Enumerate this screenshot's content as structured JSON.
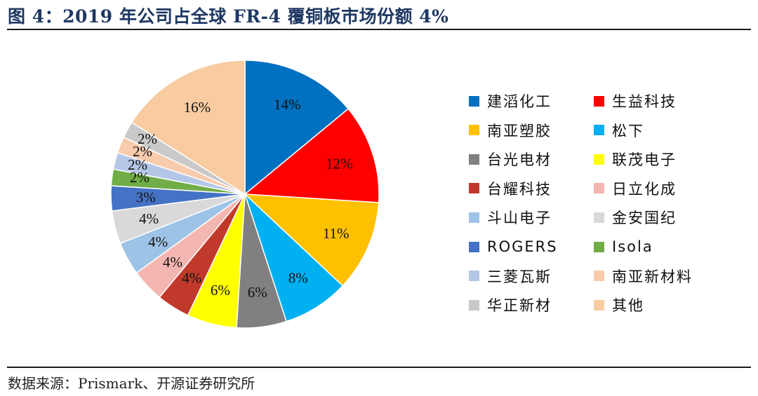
{
  "figure": {
    "title": "图 4：2019 年公司占全球 FR-4 覆铜板市场份额 4%",
    "source": "数据来源：Prismark、开源证券研究所"
  },
  "chart_data": {
    "type": "pie",
    "title": "",
    "unit": "%",
    "start": "12 o'clock",
    "direction": "clockwise",
    "legend_position": "right",
    "slices": [
      {
        "name": "建滔化工",
        "value": 14,
        "label": "14%",
        "color": "#0070c0"
      },
      {
        "name": "生益科技",
        "value": 12,
        "label": "12%",
        "color": "#ff0000"
      },
      {
        "name": "南亚塑胶",
        "value": 11,
        "label": "11%",
        "color": "#ffc000"
      },
      {
        "name": "松下",
        "value": 8,
        "label": "8%",
        "color": "#00b0f0"
      },
      {
        "name": "台光电材",
        "value": 6,
        "label": "6%",
        "color": "#808080"
      },
      {
        "name": "联茂电子",
        "value": 6,
        "label": "6%",
        "color": "#ffff00"
      },
      {
        "name": "台耀科技",
        "value": 4,
        "label": "4%",
        "color": "#c0392b"
      },
      {
        "name": "日立化成",
        "value": 4,
        "label": "4%",
        "color": "#f4b6b0"
      },
      {
        "name": "斗山电子",
        "value": 4,
        "label": "4%",
        "color": "#9dc3e6"
      },
      {
        "name": "金安国纪",
        "value": 4,
        "label": "4%",
        "color": "#d9d9d9"
      },
      {
        "name": "ROGERS",
        "value": 3,
        "label": "3%",
        "color": "#4472c4"
      },
      {
        "name": "Isola",
        "value": 2,
        "label": "2%",
        "color": "#70ad47"
      },
      {
        "name": "三菱瓦斯",
        "value": 2,
        "label": "2%",
        "color": "#b4c7e7"
      },
      {
        "name": "南亚新材料",
        "value": 2,
        "label": "2%",
        "color": "#f8cbad"
      },
      {
        "name": "华正新材",
        "value": 2,
        "label": "2%",
        "color": "#c9c9c9"
      },
      {
        "name": "其他",
        "value": 16,
        "label": "16%",
        "color": "#f8cba0"
      }
    ]
  }
}
